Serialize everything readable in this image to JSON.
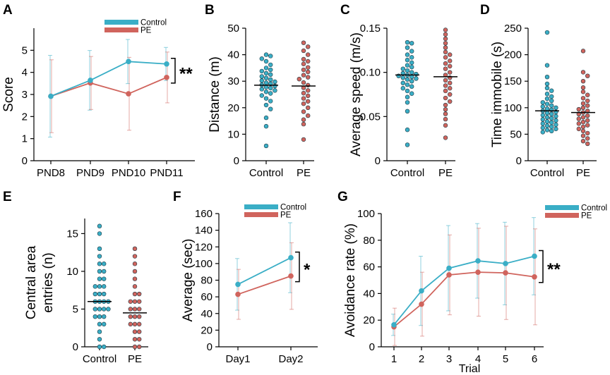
{
  "colors": {
    "control": "#3aaec6",
    "pe": "#d0645d"
  },
  "legend": {
    "control_label": "Control",
    "pe_label": "PE"
  },
  "chart_data": [
    {
      "panel": "A",
      "type": "line",
      "xlabel": "",
      "ylabel": "Score",
      "categories": [
        "PND8",
        "PND9",
        "PND10",
        "PND11"
      ],
      "ylim": [
        0,
        6
      ],
      "yticks": [
        0,
        1,
        2,
        3,
        4,
        5
      ],
      "series": [
        {
          "name": "Control",
          "values": [
            2.92,
            3.64,
            4.49,
            4.38
          ],
          "err": [
            1.85,
            1.35,
            1.0,
            0.75
          ]
        },
        {
          "name": "PE",
          "values": [
            2.92,
            3.52,
            3.03,
            3.77
          ],
          "err": [
            1.65,
            1.2,
            1.65,
            1.15
          ]
        }
      ],
      "significance": "**",
      "legend": true
    },
    {
      "panel": "B",
      "type": "scatter",
      "xlabel": "",
      "ylabel": "Distance (m)",
      "categories": [
        "Control",
        "PE"
      ],
      "ylim": [
        0,
        50
      ],
      "yticks": [
        0,
        10,
        20,
        30,
        40,
        50
      ],
      "series": [
        {
          "name": "Control",
          "mean": 28.5,
          "values": [
            40,
            39.5,
            38.5,
            37.5,
            36.2,
            35,
            34.3,
            33.8,
            33,
            32.5,
            31.8,
            31.2,
            30.6,
            30.2,
            29.8,
            29.4,
            29,
            28.6,
            28.2,
            27.8,
            27.4,
            27,
            26.5,
            26,
            25.4,
            24.6,
            23.5,
            22.5,
            21,
            19.5,
            16.2,
            13,
            5.6
          ]
        },
        {
          "name": "PE",
          "mean": 28.2,
          "values": [
            44.5,
            43,
            41.5,
            40,
            38.3,
            37.5,
            36.5,
            35.2,
            34.3,
            33.5,
            32.3,
            31.5,
            30.8,
            29.5,
            28.5,
            27.5,
            26.5,
            25.5,
            24.5,
            23.5,
            22.4,
            21.5,
            20,
            18.5,
            17,
            15.5,
            13.8,
            8
          ]
        }
      ]
    },
    {
      "panel": "C",
      "type": "scatter",
      "xlabel": "",
      "ylabel": "Average speed (m/s)",
      "categories": [
        "Control",
        "PE"
      ],
      "ylim": [
        0,
        0.15
      ],
      "yticks": [
        0,
        0.05,
        0.1,
        0.15
      ],
      "ytick_labels": [
        "0",
        "0.05",
        "0.10",
        "0.15"
      ],
      "series": [
        {
          "name": "Control",
          "mean": 0.097,
          "values": [
            0.134,
            0.133,
            0.128,
            0.124,
            0.12,
            0.117,
            0.114,
            0.111,
            0.108,
            0.106,
            0.104,
            0.102,
            0.1,
            0.099,
            0.098,
            0.097,
            0.096,
            0.095,
            0.094,
            0.093,
            0.092,
            0.09,
            0.088,
            0.086,
            0.084,
            0.082,
            0.079,
            0.076,
            0.072,
            0.066,
            0.056,
            0.035,
            0.018
          ]
        },
        {
          "name": "PE",
          "mean": 0.095,
          "values": [
            0.148,
            0.143,
            0.138,
            0.133,
            0.128,
            0.123,
            0.12,
            0.117,
            0.113,
            0.11,
            0.107,
            0.104,
            0.1,
            0.097,
            0.094,
            0.091,
            0.088,
            0.085,
            0.082,
            0.079,
            0.075,
            0.071,
            0.067,
            0.063,
            0.058,
            0.053,
            0.047,
            0.04,
            0.026
          ]
        }
      ]
    },
    {
      "panel": "D",
      "type": "scatter",
      "xlabel": "",
      "ylabel": "Time immobile (s)",
      "categories": [
        "Control",
        "PE"
      ],
      "ylim": [
        0,
        250
      ],
      "yticks": [
        0,
        50,
        100,
        150,
        200,
        250
      ],
      "series": [
        {
          "name": "Control",
          "mean": 94,
          "values": [
            242,
            180,
            158,
            145,
            137,
            132,
            126,
            121,
            117,
            113,
            110,
            107,
            104,
            102,
            100,
            98,
            96,
            94,
            92,
            90,
            88,
            86,
            84,
            82,
            80,
            78,
            76,
            74,
            72,
            70,
            68,
            66,
            64,
            62,
            60,
            58,
            56,
            54
          ]
        },
        {
          "name": "PE",
          "mean": 91,
          "values": [
            207,
            167,
            160,
            150,
            138,
            130,
            124,
            118,
            113,
            108,
            104,
            100,
            97,
            94,
            91,
            88,
            85,
            82,
            79,
            76,
            73,
            70,
            67,
            64,
            60,
            56,
            52,
            47,
            42,
            37,
            32
          ]
        }
      ]
    },
    {
      "panel": "E",
      "type": "scatter",
      "xlabel": "",
      "ylabel": "Central area entries (n)",
      "ylabel_lines": [
        "Central area",
        "entries (n)"
      ],
      "categories": [
        "Control",
        "PE"
      ],
      "ylim": [
        0,
        17
      ],
      "yticks": [
        0,
        5,
        10,
        15
      ],
      "series": [
        {
          "name": "Control",
          "mean": 6,
          "values": [
            16,
            15,
            13,
            12,
            11,
            11,
            10,
            10,
            9,
            9,
            8,
            8,
            8,
            7,
            7,
            7,
            6,
            6,
            6,
            6,
            5,
            5,
            5,
            5,
            4,
            4,
            4,
            3,
            3,
            2,
            1,
            0,
            0
          ]
        },
        {
          "name": "PE",
          "mean": 4.5,
          "values": [
            13,
            12,
            11,
            10,
            9,
            8,
            7,
            7,
            6,
            6,
            6,
            5,
            5,
            5,
            4,
            4,
            4,
            3,
            3,
            3,
            2,
            2,
            1,
            1,
            0,
            0
          ]
        }
      ]
    },
    {
      "panel": "F",
      "type": "line",
      "xlabel": "",
      "ylabel": "Average (sec)",
      "categories": [
        "Day1",
        "Day2"
      ],
      "ylim": [
        0,
        160
      ],
      "yticks": [
        0,
        20,
        40,
        60,
        80,
        100,
        120,
        140,
        160
      ],
      "series": [
        {
          "name": "Control",
          "values": [
            75,
            107
          ],
          "err": [
            31,
            42
          ]
        },
        {
          "name": "PE",
          "values": [
            63,
            85
          ],
          "err": [
            30,
            40
          ]
        }
      ],
      "significance": "*",
      "legend": true
    },
    {
      "panel": "G",
      "type": "line",
      "xlabel": "Trial",
      "ylabel": "Avoidance rate (%)",
      "categories": [
        "1",
        "2",
        "3",
        "4",
        "5",
        "6"
      ],
      "ylim": [
        0,
        100
      ],
      "yticks": [
        0,
        20,
        40,
        60,
        80,
        100
      ],
      "series": [
        {
          "name": "Control",
          "values": [
            16.5,
            42,
            59,
            64.5,
            62.5,
            68
          ],
          "err": [
            8,
            26,
            32,
            28,
            31,
            29
          ]
        },
        {
          "name": "PE",
          "values": [
            15,
            32,
            54,
            56,
            55.5,
            52.5
          ],
          "err": [
            14,
            24,
            30,
            33,
            35,
            36
          ]
        }
      ],
      "significance": "**",
      "legend": true
    }
  ]
}
